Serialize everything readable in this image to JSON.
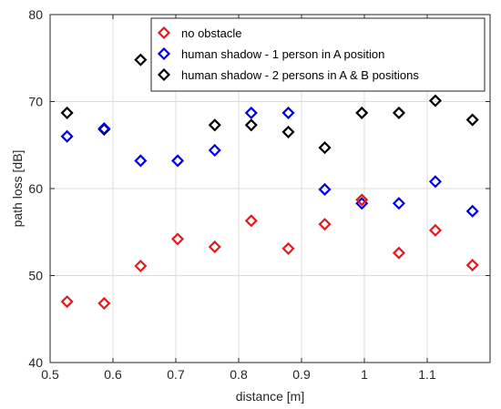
{
  "chart_data": {
    "type": "scatter",
    "xlabel": "distance [m]",
    "ylabel": "path loss [dB]",
    "xlim": [
      0.5,
      1.2
    ],
    "ylim": [
      40,
      80
    ],
    "xticks": [
      0.5,
      0.6,
      0.7,
      0.8,
      0.9,
      1.0,
      1.1
    ],
    "xtick_labels": [
      "0.5",
      "0.6",
      "0.7",
      "0.8",
      "0.9",
      "1",
      "1.1"
    ],
    "yticks": [
      40,
      50,
      60,
      70,
      80
    ],
    "ytick_labels": [
      "40",
      "50",
      "60",
      "70",
      "80"
    ],
    "grid": true,
    "legend_position": "top-right",
    "marker": "diamond",
    "series": [
      {
        "name": "no obstacle",
        "color": "#e41a1c",
        "x": [
          0.527,
          0.586,
          0.644,
          0.703,
          0.762,
          0.82,
          0.879,
          0.937,
          0.996,
          1.055,
          1.113,
          1.172
        ],
        "y": [
          47.0,
          46.8,
          51.1,
          54.2,
          53.3,
          56.3,
          53.1,
          55.9,
          58.7,
          52.6,
          55.2,
          51.2
        ]
      },
      {
        "name": "human shadow - 1 person in A position",
        "color": "#0000e6",
        "x": [
          0.527,
          0.586,
          0.644,
          0.703,
          0.762,
          0.82,
          0.879,
          0.937,
          0.996,
          1.055,
          1.113,
          1.172
        ],
        "y": [
          66.0,
          66.9,
          63.2,
          63.2,
          64.4,
          68.7,
          68.7,
          59.9,
          58.3,
          58.3,
          60.8,
          57.4
        ]
      },
      {
        "name": "human shadow - 2 persons in A & B positions",
        "color": "#000000",
        "x": [
          0.527,
          0.586,
          0.644,
          0.703,
          0.762,
          0.82,
          0.879,
          0.937,
          0.996,
          1.055,
          1.113,
          1.172
        ],
        "y": [
          68.7,
          66.8,
          74.8,
          null,
          67.3,
          67.3,
          66.5,
          64.7,
          68.7,
          68.7,
          70.1,
          67.9
        ]
      }
    ]
  }
}
